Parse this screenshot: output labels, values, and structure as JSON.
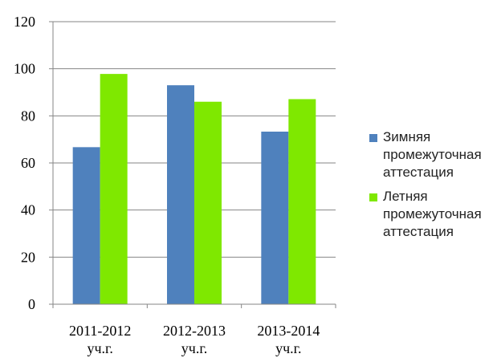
{
  "chart_data": {
    "type": "bar",
    "categories": [
      [
        "2011-2012",
        "уч.г."
      ],
      [
        "2012-2013",
        "уч.г."
      ],
      [
        "2013-2014",
        "уч.г."
      ]
    ],
    "series": [
      {
        "name": "Зимняя промежуточная аттестация",
        "color": "#4F81BD",
        "values": [
          66.7,
          93,
          73.3
        ]
      },
      {
        "name": "Летняя промежуточная аттестация",
        "color": "#7FE800",
        "values": [
          97.8,
          86,
          87.1
        ]
      }
    ],
    "yticks": [
      "0",
      "20",
      "40",
      "60",
      "80",
      "100",
      "120"
    ],
    "ylim": [
      0,
      120
    ],
    "grid": true,
    "legend_position": "right",
    "gridline_color": "#868686"
  }
}
